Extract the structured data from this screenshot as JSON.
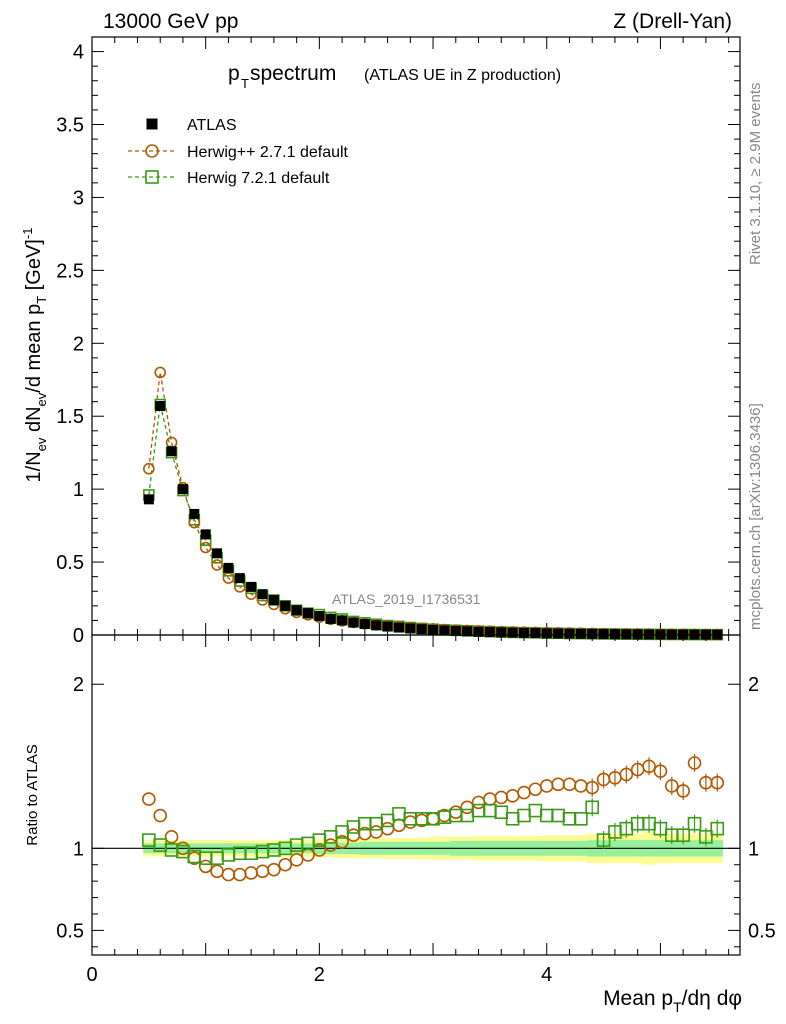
{
  "header": {
    "left": "13000 GeV pp",
    "right": "Z (Drell-Yan)"
  },
  "title": {
    "main": "p",
    "main_sub": "T",
    "main_rest": " spectrum",
    "detail": "(ATLAS UE in Z production)"
  },
  "side_labels": {
    "rivet": "Rivet 3.1.10, ≥ 2.9M events",
    "mcplots": "mcplots.cern.ch [arXiv:1306.3436]"
  },
  "watermark": "ATLAS_2019_I1736531",
  "axes": {
    "ylabel_top": "1/N_ev dN_ev/d mean p_T [GeV]^-1",
    "ylabel_bottom": "Ratio to ATLAS",
    "xlabel": "Mean p_T/dη dφ",
    "colors": {
      "data": "#000000",
      "herwigpp": "#b35900",
      "herwig7": "#3a9a15",
      "band_green": "#98f09c",
      "band_yellow": "#fcfc94"
    }
  },
  "legend": [
    {
      "label": "ATLAS",
      "marker": "square-filled"
    },
    {
      "label": "Herwig++ 2.7.1 default",
      "marker": "circle-open"
    },
    {
      "label": "Herwig 7.2.1 default",
      "marker": "square-open"
    }
  ],
  "chart_data": [
    {
      "type": "scatter",
      "panel": "main",
      "xlim": [
        0,
        5.7
      ],
      "ylim": [
        0,
        4.1
      ],
      "yticks": [
        0,
        0.5,
        1,
        1.5,
        2,
        2.5,
        3,
        3.5,
        4
      ],
      "ytick_labels": [
        "0",
        "0.5",
        "1",
        "1.5",
        "2",
        "2.5",
        "3",
        "3.5",
        "4"
      ],
      "x": [
        0.5,
        0.6,
        0.7,
        0.8,
        0.9,
        1.0,
        1.1,
        1.2,
        1.3,
        1.4,
        1.5,
        1.6,
        1.7,
        1.8,
        1.9,
        2.0,
        2.1,
        2.2,
        2.3,
        2.4,
        2.5,
        2.6,
        2.7,
        2.8,
        2.9,
        3.0,
        3.1,
        3.2,
        3.3,
        3.4,
        3.5,
        3.6,
        3.7,
        3.8,
        3.9,
        4.0,
        4.1,
        4.2,
        4.3,
        4.4,
        4.5,
        4.6,
        4.7,
        4.8,
        4.9,
        5.0,
        5.1,
        5.2,
        5.3,
        5.4,
        5.5
      ],
      "series": [
        {
          "name": "ATLAS",
          "values": [
            0.93,
            1.57,
            1.26,
            1.0,
            0.83,
            0.69,
            0.56,
            0.46,
            0.39,
            0.33,
            0.28,
            0.24,
            0.2,
            0.17,
            0.15,
            0.13,
            0.11,
            0.1,
            0.085,
            0.075,
            0.066,
            0.058,
            0.051,
            0.045,
            0.04,
            0.035,
            0.031,
            0.028,
            0.025,
            0.022,
            0.02,
            0.018,
            0.016,
            0.014,
            0.013,
            0.011,
            0.01,
            0.009,
            0.008,
            0.0072,
            0.0065,
            0.0058,
            0.0052,
            0.0047,
            0.0042,
            0.0038,
            0.0034,
            0.0031,
            0.0028,
            0.0025,
            0.0022
          ]
        },
        {
          "name": "Herwig++ 2.7.1 default",
          "values": [
            1.14,
            1.8,
            1.32,
            1.01,
            0.77,
            0.6,
            0.48,
            0.39,
            0.33,
            0.28,
            0.24,
            0.21,
            0.18,
            0.155,
            0.138,
            0.122,
            0.108,
            0.097,
            0.086,
            0.077,
            0.07,
            0.063,
            0.057,
            0.051,
            0.046,
            0.041,
            0.037,
            0.034,
            0.031,
            0.028,
            0.026,
            0.023,
            0.021,
            0.019,
            0.018,
            0.016,
            0.014,
            0.013,
            0.012,
            0.011,
            0.0095,
            0.0085,
            0.0077,
            0.007,
            0.0063,
            0.0055,
            0.0049,
            0.0044,
            0.0042,
            0.0035,
            0.003
          ]
        },
        {
          "name": "Herwig 7.2.1 default",
          "values": [
            0.96,
            1.58,
            1.25,
            0.99,
            0.79,
            0.65,
            0.53,
            0.44,
            0.37,
            0.32,
            0.27,
            0.24,
            0.2,
            0.17,
            0.15,
            0.14,
            0.12,
            0.11,
            0.093,
            0.084,
            0.074,
            0.065,
            0.059,
            0.051,
            0.045,
            0.04,
            0.035,
            0.032,
            0.029,
            0.026,
            0.023,
            0.02,
            0.018,
            0.016,
            0.015,
            0.013,
            0.012,
            0.01,
            0.0092,
            0.0082,
            0.0072,
            0.0064,
            0.0058,
            0.0052,
            0.0047,
            0.0042,
            0.0036,
            0.0034,
            0.003,
            0.0027,
            0.0024
          ]
        }
      ]
    },
    {
      "type": "scatter",
      "panel": "ratio",
      "xlim": [
        0,
        5.7
      ],
      "ylim": [
        0.35,
        2.3
      ],
      "yticks": [
        0.5,
        1,
        2
      ],
      "ytick_labels": [
        "0.5",
        "1",
        "2"
      ],
      "xticks": [
        0,
        2,
        4
      ],
      "xtick_labels": [
        "0",
        "2",
        "4"
      ],
      "x": [
        0.5,
        0.6,
        0.7,
        0.8,
        0.9,
        1.0,
        1.1,
        1.2,
        1.3,
        1.4,
        1.5,
        1.6,
        1.7,
        1.8,
        1.9,
        2.0,
        2.1,
        2.2,
        2.3,
        2.4,
        2.5,
        2.6,
        2.7,
        2.8,
        2.9,
        3.0,
        3.1,
        3.2,
        3.3,
        3.4,
        3.5,
        3.6,
        3.7,
        3.8,
        3.9,
        4.0,
        4.1,
        4.2,
        4.3,
        4.4,
        4.5,
        4.6,
        4.7,
        4.8,
        4.9,
        5.0,
        5.1,
        5.2,
        5.3,
        5.4,
        5.5
      ],
      "band_green": [
        0.03,
        0.03,
        0.03,
        0.03,
        0.03,
        0.03,
        0.03,
        0.03,
        0.03,
        0.03,
        0.03,
        0.03,
        0.03,
        0.03,
        0.03,
        0.035,
        0.035,
        0.035,
        0.035,
        0.04,
        0.04,
        0.04,
        0.04,
        0.04,
        0.04,
        0.04,
        0.04,
        0.045,
        0.045,
        0.045,
        0.045,
        0.045,
        0.045,
        0.045,
        0.045,
        0.045,
        0.045,
        0.045,
        0.045,
        0.05,
        0.05,
        0.05,
        0.05,
        0.05,
        0.05,
        0.05,
        0.05,
        0.05,
        0.05,
        0.05,
        0.05
      ],
      "band_yellow": [
        0.05,
        0.05,
        0.05,
        0.05,
        0.05,
        0.05,
        0.05,
        0.05,
        0.05,
        0.05,
        0.05,
        0.05,
        0.05,
        0.05,
        0.05,
        0.055,
        0.055,
        0.06,
        0.06,
        0.06,
        0.06,
        0.065,
        0.065,
        0.065,
        0.065,
        0.07,
        0.07,
        0.07,
        0.07,
        0.075,
        0.075,
        0.075,
        0.075,
        0.075,
        0.075,
        0.08,
        0.08,
        0.08,
        0.08,
        0.09,
        0.09,
        0.09,
        0.09,
        0.09,
        0.1,
        0.09,
        0.09,
        0.09,
        0.09,
        0.09,
        0.09
      ],
      "series": [
        {
          "name": "Herwig++ 2.7.1 default",
          "values": [
            1.3,
            1.2,
            1.07,
            1.0,
            0.94,
            0.89,
            0.86,
            0.84,
            0.84,
            0.85,
            0.86,
            0.87,
            0.9,
            0.93,
            0.96,
            0.99,
            1.02,
            1.04,
            1.08,
            1.09,
            1.1,
            1.12,
            1.14,
            1.16,
            1.17,
            1.18,
            1.2,
            1.22,
            1.25,
            1.28,
            1.3,
            1.31,
            1.32,
            1.34,
            1.36,
            1.38,
            1.39,
            1.39,
            1.38,
            1.37,
            1.42,
            1.43,
            1.45,
            1.48,
            1.5,
            1.47,
            1.38,
            1.35,
            1.52,
            1.4,
            1.4
          ]
        },
        {
          "name": "Herwig 7.2.1 default",
          "values": [
            1.05,
            1.02,
            0.99,
            0.98,
            0.95,
            0.94,
            0.94,
            0.96,
            0.97,
            0.97,
            0.98,
            0.99,
            1.0,
            1.02,
            1.03,
            1.05,
            1.07,
            1.1,
            1.13,
            1.15,
            1.15,
            1.17,
            1.21,
            1.18,
            1.18,
            1.18,
            1.19,
            1.2,
            1.2,
            1.23,
            1.23,
            1.22,
            1.18,
            1.2,
            1.23,
            1.2,
            1.2,
            1.18,
            1.18,
            1.25,
            1.05,
            1.1,
            1.12,
            1.15,
            1.15,
            1.12,
            1.08,
            1.08,
            1.15,
            1.07,
            1.12
          ]
        }
      ]
    }
  ]
}
